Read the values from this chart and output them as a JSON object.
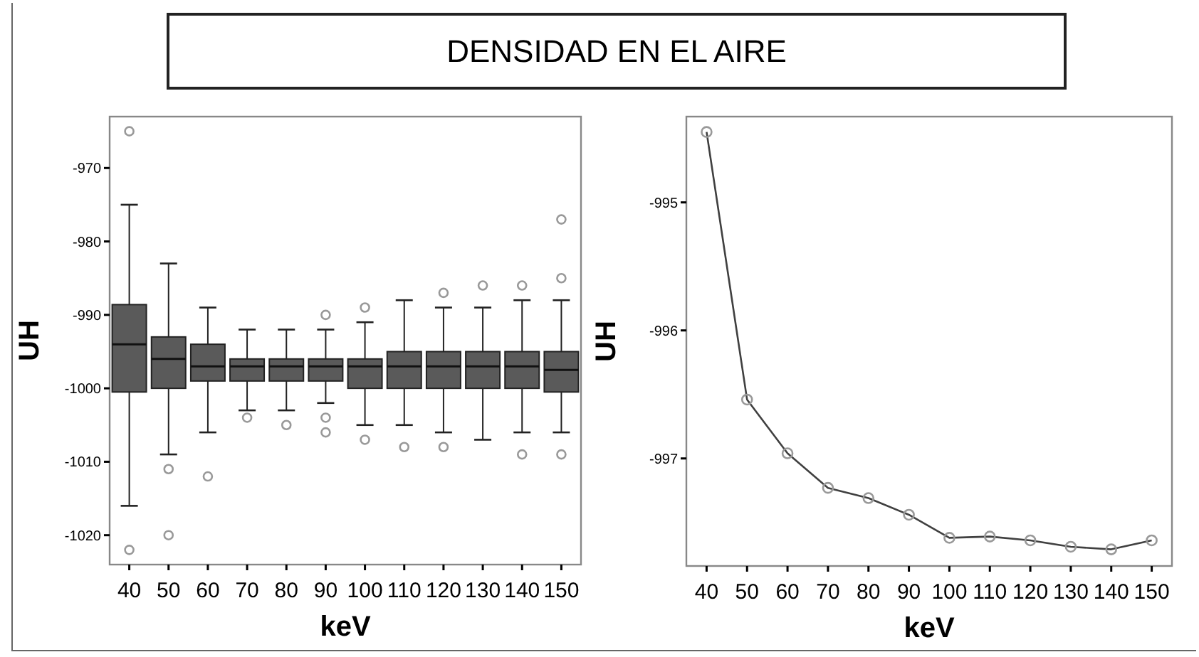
{
  "chart_data": [
    {
      "type": "box",
      "title": "DENSIDAD EN EL AIRE",
      "xlabel": "keV",
      "ylabel": "UH",
      "categories": [
        "40",
        "50",
        "60",
        "70",
        "80",
        "90",
        "100",
        "110",
        "120",
        "130",
        "140",
        "150"
      ],
      "ylim": [
        -1024,
        -963
      ],
      "yticks": [
        -970,
        -980,
        -990,
        -1000,
        -1010,
        -1020
      ],
      "color": "#5a5a5a",
      "grid": false,
      "boxes": [
        {
          "low": -1016,
          "q1": -1000.5,
          "median": -994,
          "q3": -988.6,
          "high": -975,
          "outliers": [
            -965,
            -1022
          ]
        },
        {
          "low": -1009,
          "q1": -1000,
          "median": -996,
          "q3": -993,
          "high": -983,
          "outliers": [
            -1011,
            -1020
          ]
        },
        {
          "low": -1006,
          "q1": -999,
          "median": -997,
          "q3": -994,
          "high": -989,
          "outliers": [
            -1012
          ]
        },
        {
          "low": -1003,
          "q1": -999,
          "median": -997,
          "q3": -996,
          "high": -992,
          "outliers": [
            -1004
          ]
        },
        {
          "low": -1003,
          "q1": -999,
          "median": -997,
          "q3": -996,
          "high": -992,
          "outliers": [
            -1005
          ]
        },
        {
          "low": -1002,
          "q1": -999,
          "median": -997,
          "q3": -996,
          "high": -992,
          "outliers": [
            -990,
            -1004,
            -1006
          ]
        },
        {
          "low": -1005,
          "q1": -1000,
          "median": -997,
          "q3": -996,
          "high": -991,
          "outliers": [
            -989,
            -1007
          ]
        },
        {
          "low": -1005,
          "q1": -1000,
          "median": -997,
          "q3": -995,
          "high": -988,
          "outliers": [
            -1008
          ]
        },
        {
          "low": -1006,
          "q1": -1000,
          "median": -997,
          "q3": -995,
          "high": -989,
          "outliers": [
            -987,
            -1008
          ]
        },
        {
          "low": -1007,
          "q1": -1000,
          "median": -997,
          "q3": -995,
          "high": -989,
          "outliers": [
            -986
          ]
        },
        {
          "low": -1006,
          "q1": -1000,
          "median": -997,
          "q3": -995,
          "high": -988,
          "outliers": [
            -986,
            -1009
          ]
        },
        {
          "low": -1006,
          "q1": -1000.5,
          "median": -997.5,
          "q3": -995,
          "high": -988,
          "outliers": [
            -977,
            -985,
            -1009
          ]
        }
      ]
    },
    {
      "type": "line",
      "xlabel": "keV",
      "ylabel": "UH",
      "categories": [
        "40",
        "50",
        "60",
        "70",
        "80",
        "90",
        "100",
        "110",
        "120",
        "130",
        "140",
        "150"
      ],
      "ylim": [
        -997.84,
        -994.33
      ],
      "yticks": [
        -995,
        -996,
        -997
      ],
      "grid": false,
      "marker": "circle",
      "line_style": "solid",
      "series": [
        {
          "color": "#404040",
          "values": [
            -994.45,
            -996.54,
            -996.96,
            -997.23,
            -997.31,
            -997.44,
            -997.62,
            -997.61,
            -997.64,
            -997.69,
            -997.71,
            -997.64
          ]
        }
      ]
    }
  ]
}
